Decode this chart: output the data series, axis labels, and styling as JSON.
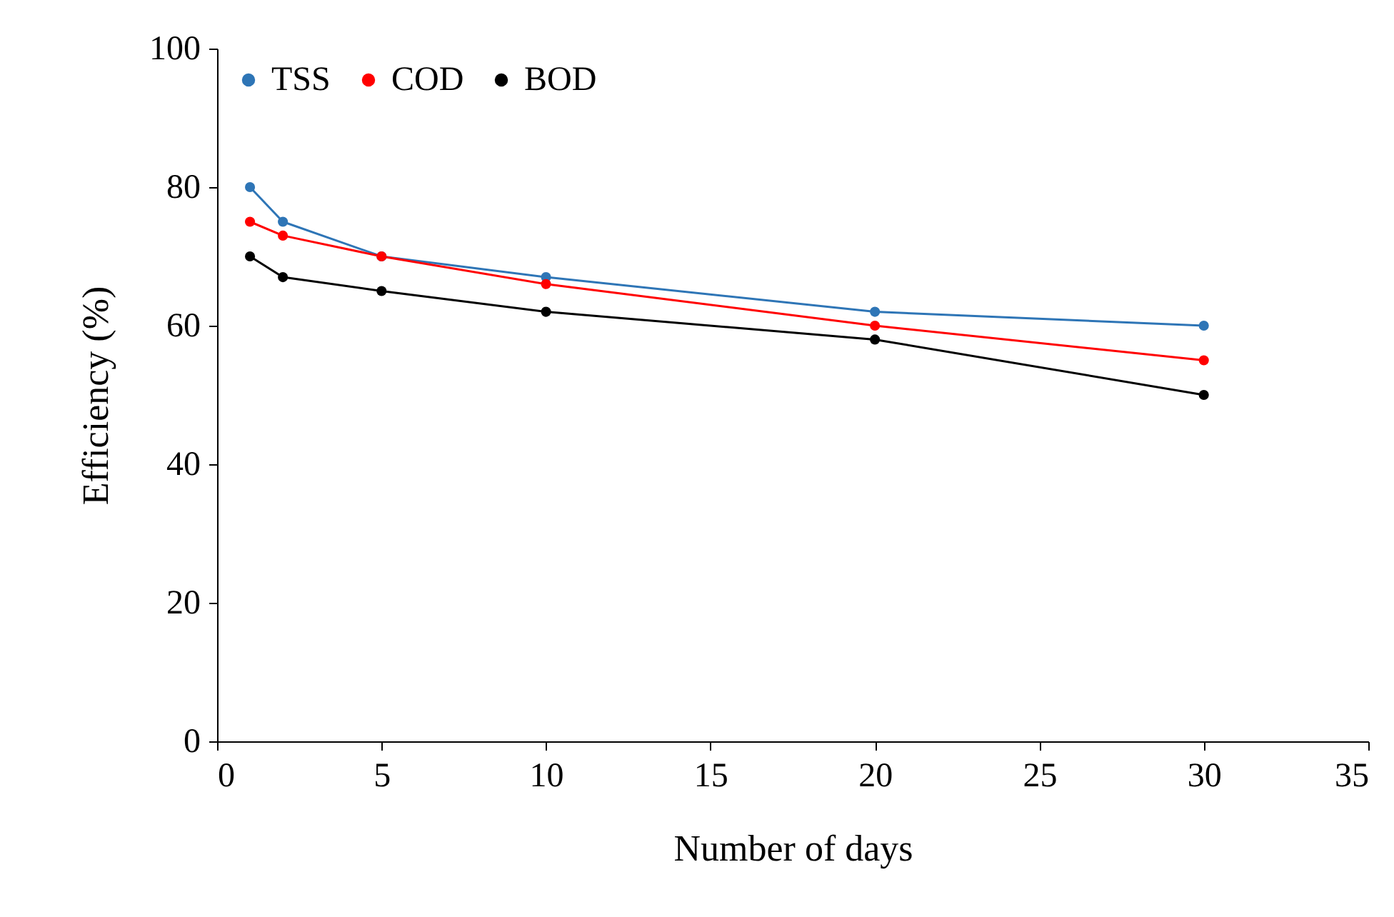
{
  "chart_data": {
    "type": "line",
    "xlabel": "Number of days",
    "ylabel": "Efficiency (%)",
    "x": [
      1,
      2,
      5,
      10,
      20,
      30
    ],
    "series": [
      {
        "name": "TSS",
        "color": "#2e75b6",
        "values": [
          80,
          75,
          70,
          67,
          62,
          60
        ]
      },
      {
        "name": "COD",
        "color": "#ff0000",
        "values": [
          75,
          73,
          70,
          66,
          60,
          55
        ]
      },
      {
        "name": "BOD",
        "color": "#000000",
        "values": [
          70,
          67,
          65,
          62,
          58,
          50
        ]
      }
    ],
    "xlim": [
      0,
      35
    ],
    "xticks": [
      0,
      5,
      10,
      15,
      20,
      25,
      30,
      35
    ],
    "ylim": [
      0,
      100
    ],
    "yticks": [
      0,
      20,
      40,
      60,
      80,
      100
    ],
    "grid": false,
    "legend": "top left",
    "marker": "circle",
    "line_style": "solid"
  }
}
